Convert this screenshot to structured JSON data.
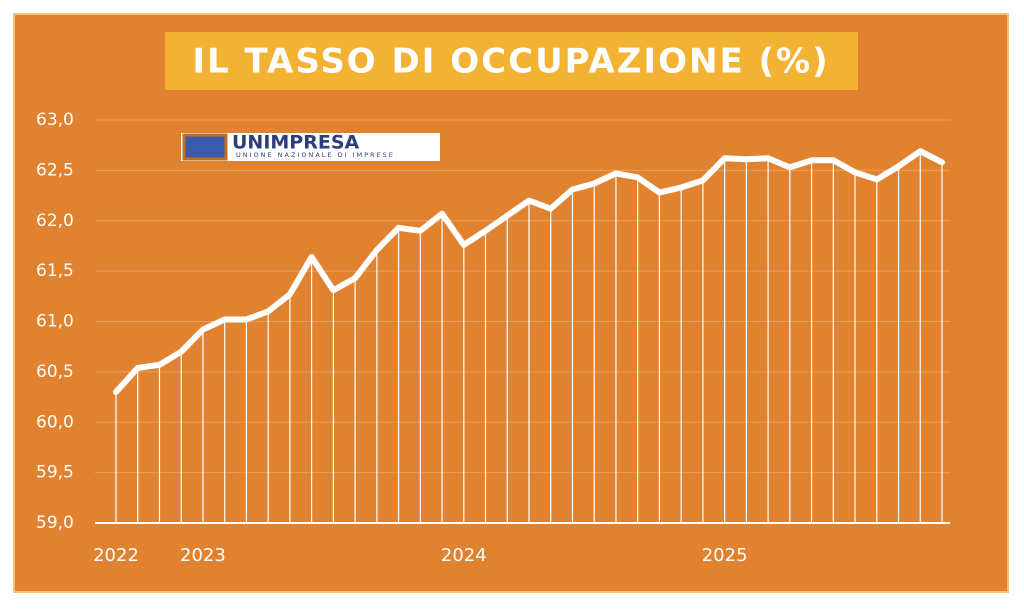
{
  "chart_data": {
    "type": "line",
    "title": "IL TASSO DI OCCUPAZIONE (%)",
    "logo": {
      "name": "UNIMPRESA",
      "subtitle": "UNIONE NAZIONALE DI IMPRESE"
    },
    "categories": [
      "2022",
      null,
      null,
      null,
      "2023",
      null,
      null,
      null,
      null,
      null,
      null,
      null,
      null,
      null,
      null,
      null,
      "2024",
      null,
      null,
      null,
      null,
      null,
      null,
      null,
      null,
      null,
      null,
      null,
      "2025",
      null,
      null,
      null,
      null,
      null,
      null,
      null,
      null,
      null,
      null
    ],
    "series": [
      {
        "color": "#ffffff",
        "values": [
          60.3,
          60.54,
          60.57,
          60.7,
          60.92,
          61.02,
          61.02,
          61.1,
          61.27,
          61.64,
          61.31,
          61.43,
          61.71,
          61.93,
          61.9,
          62.07,
          61.76,
          61.9,
          62.05,
          62.2,
          62.12,
          62.31,
          62.37,
          62.47,
          62.43,
          62.28,
          62.33,
          62.4,
          62.62,
          62.61,
          62.62,
          62.53,
          62.6,
          62.6,
          62.48,
          62.41,
          62.54,
          62.69,
          62.58
        ]
      }
    ],
    "ylim": [
      59,
      63
    ],
    "yticks": [
      {
        "value": 59,
        "label": "59,0"
      },
      {
        "value": 59.5,
        "label": "59,5"
      },
      {
        "value": 60,
        "label": "60,0"
      },
      {
        "value": 60.5,
        "label": "60,5"
      },
      {
        "value": 61,
        "label": "61,0"
      },
      {
        "value": 61.5,
        "label": "61,5"
      },
      {
        "value": 62,
        "label": "62,0"
      },
      {
        "value": 62.5,
        "label": "62,5"
      },
      {
        "value": 63,
        "label": "63,0"
      }
    ],
    "grid": true,
    "drop_lines": true
  }
}
